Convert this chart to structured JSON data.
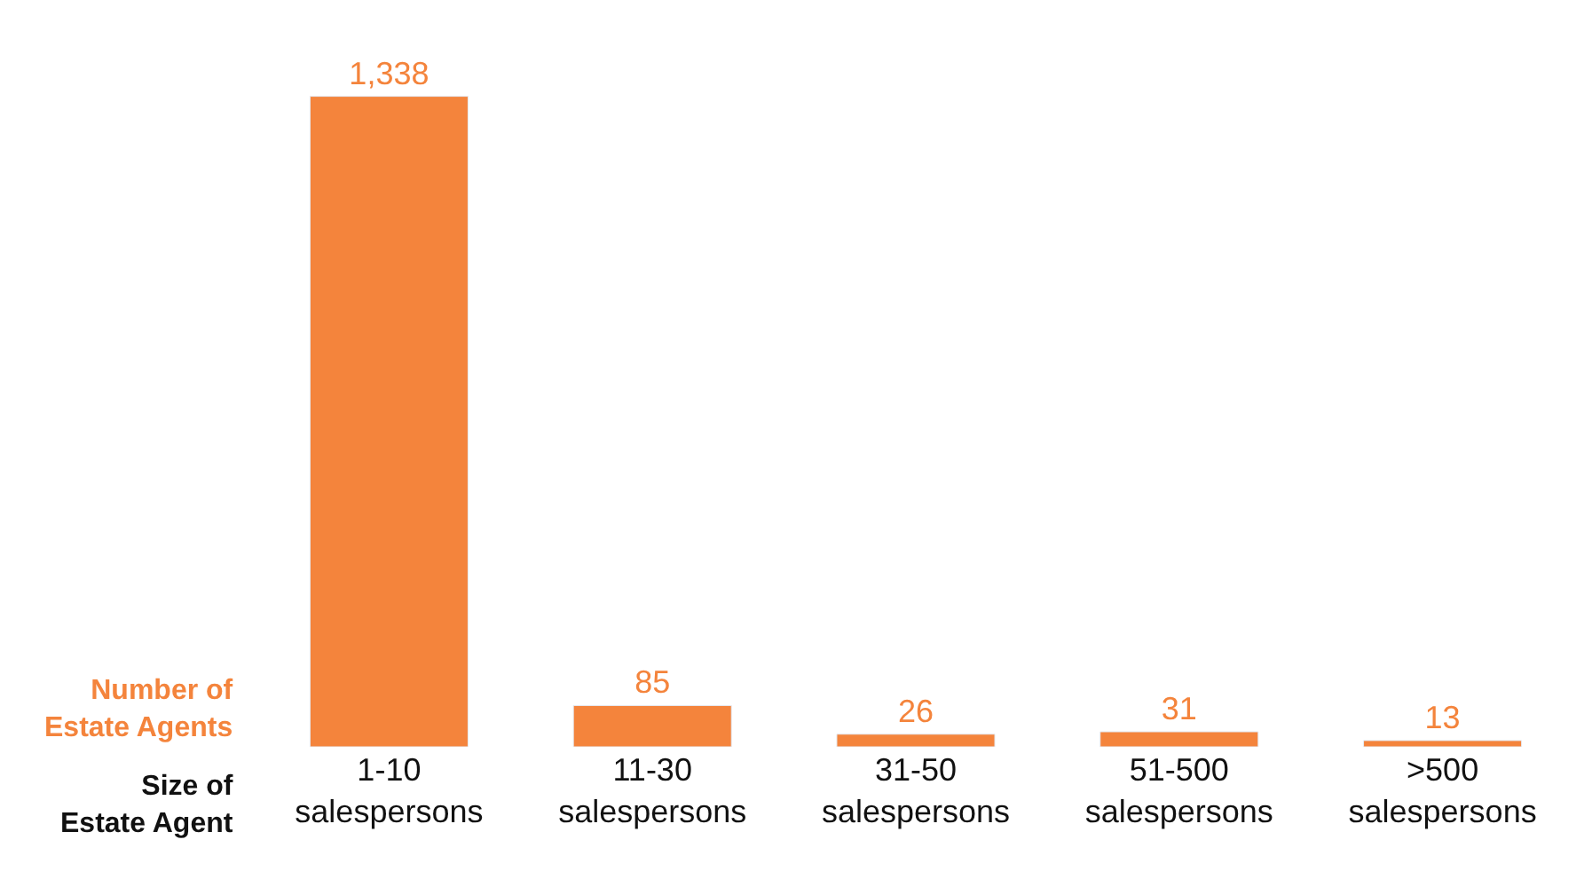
{
  "chart_data": {
    "type": "bar",
    "xlabel": "Size of\nEstate Agent",
    "ylabel": "Number of\nEstate Agents",
    "categories": [
      "1-10\nsalespersons",
      "11-30\nsalespersons",
      "31-50\nsalespersons",
      "51-500\nsalespersons",
      ">500\nsalespersons"
    ],
    "values": [
      1338,
      85,
      26,
      31,
      13
    ],
    "value_labels": [
      "1,338",
      "85",
      "26",
      "31",
      "13"
    ],
    "color": "#f4843c"
  }
}
